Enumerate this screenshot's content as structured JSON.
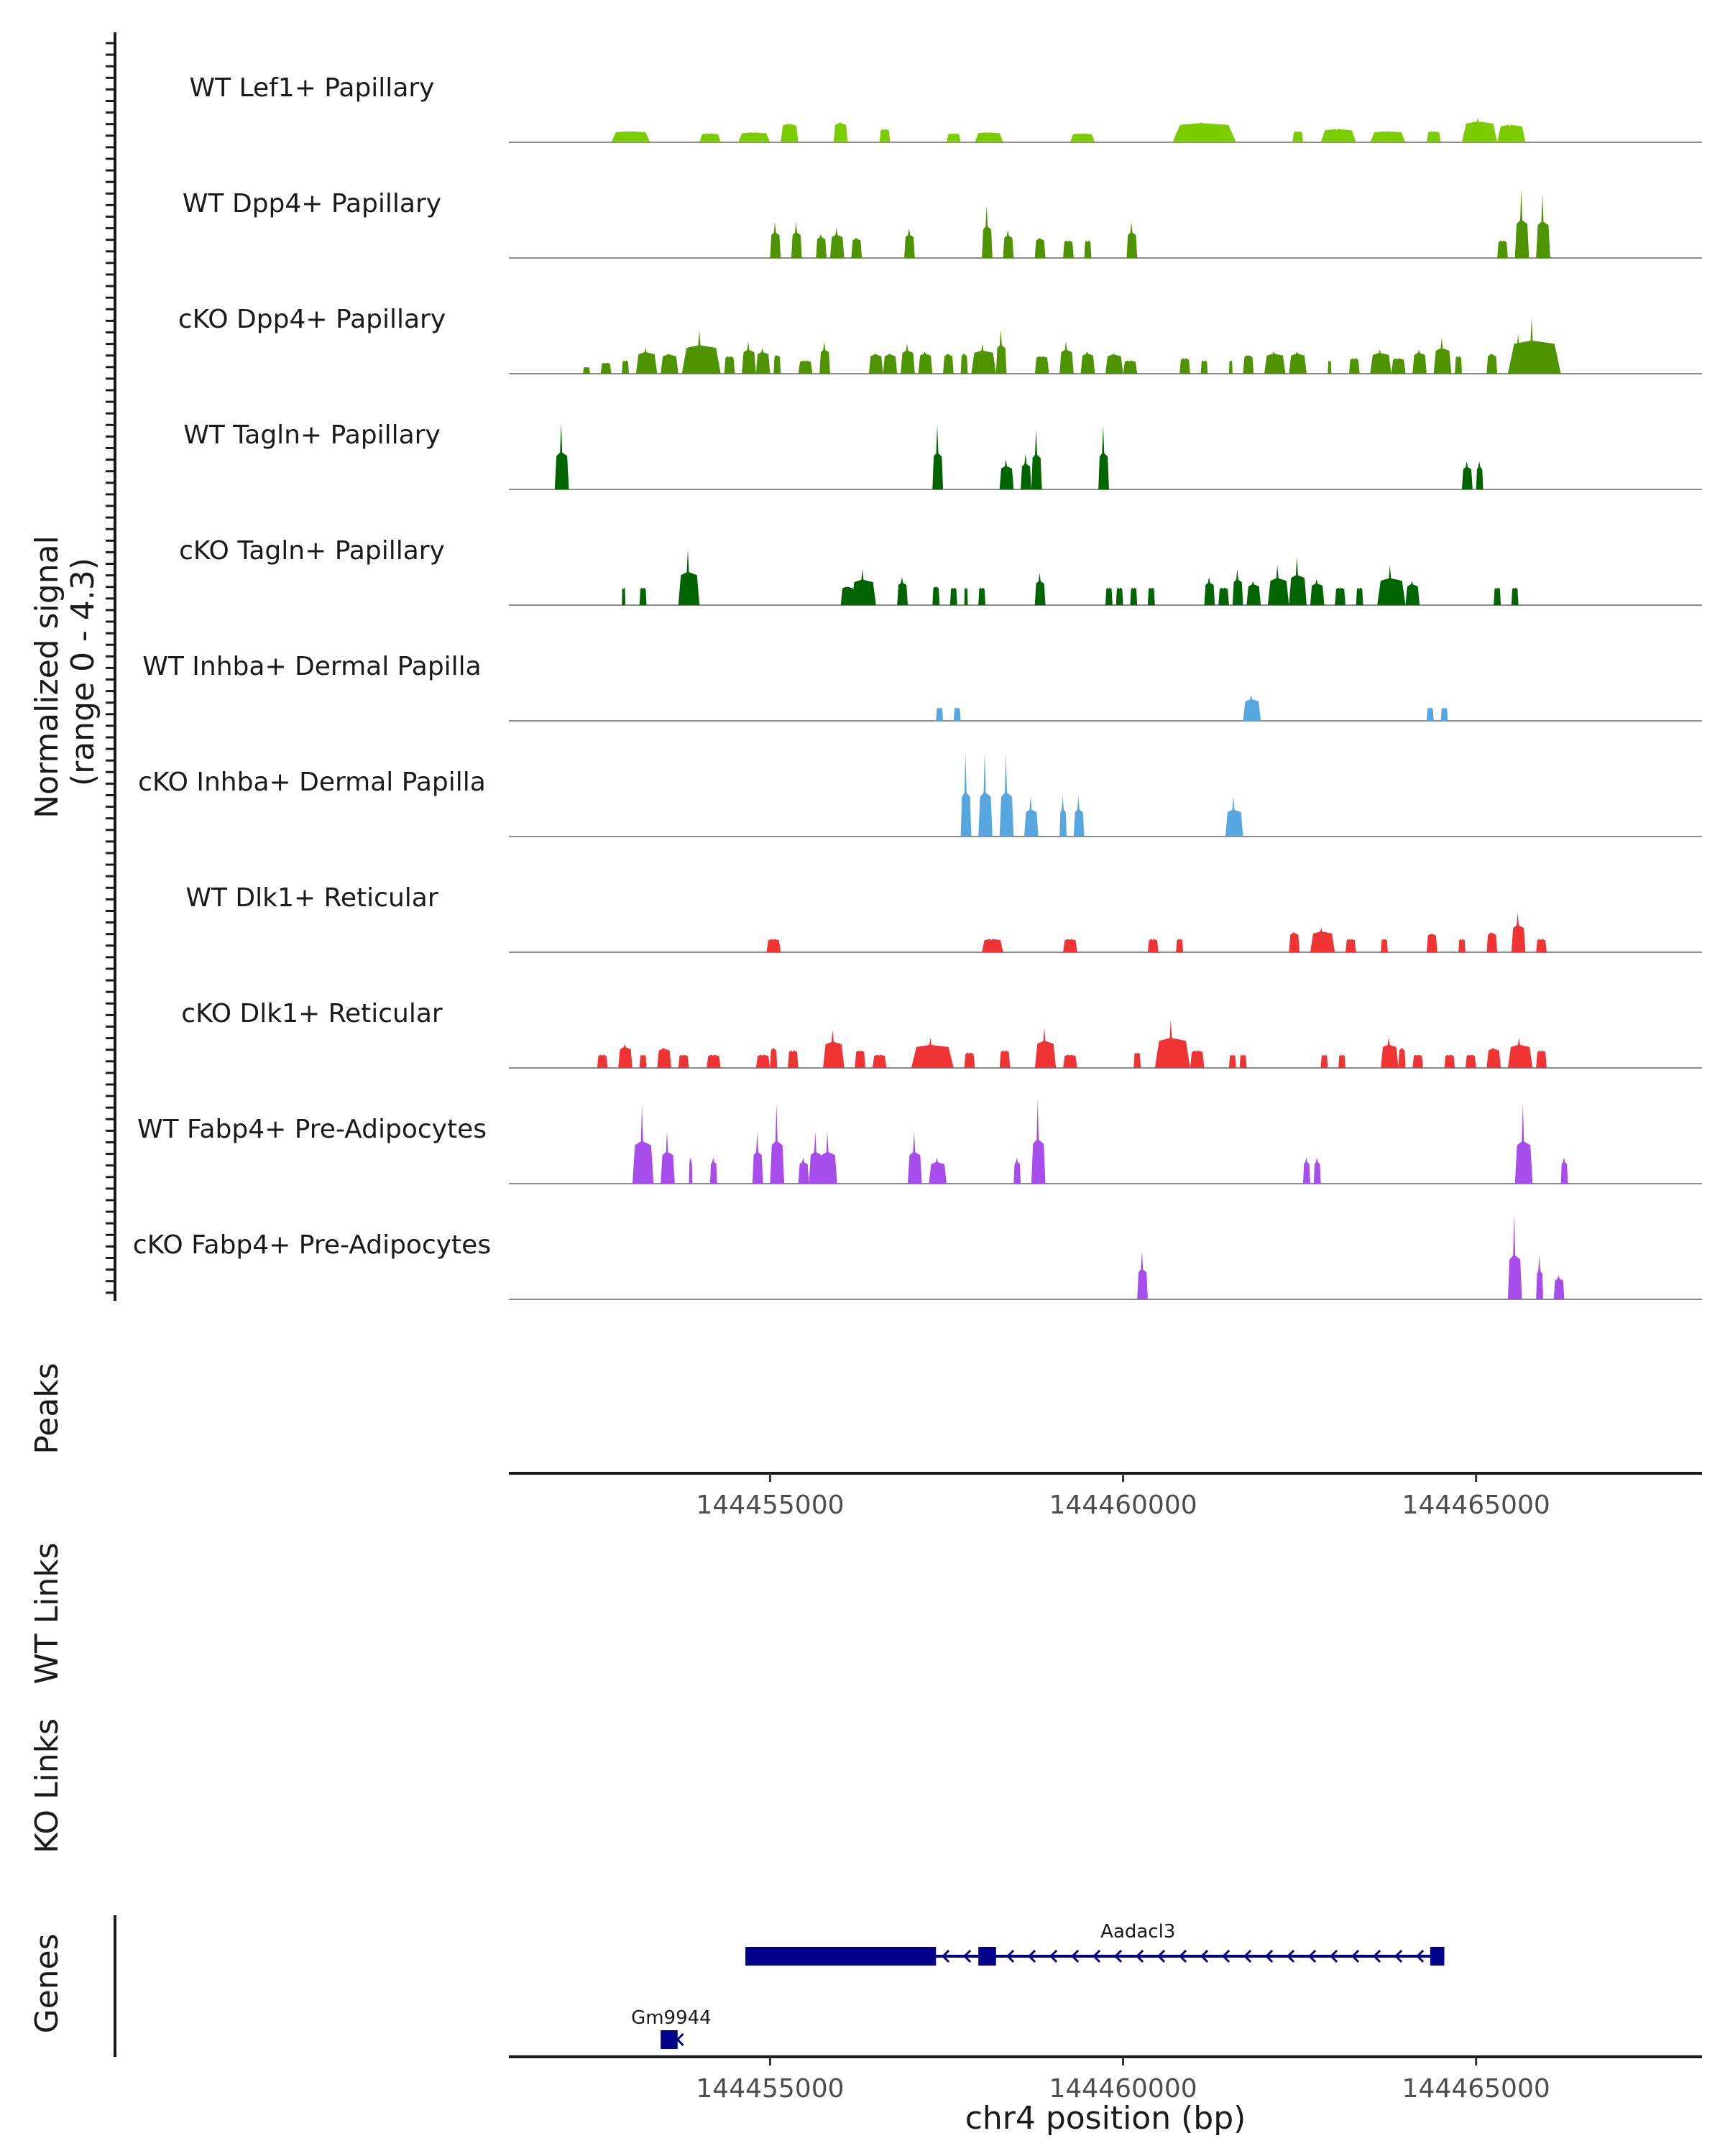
{
  "chart_data": {
    "type": "area",
    "title": "",
    "chromosome": "chr4",
    "region": [
      144451300,
      144468200
    ],
    "ylabel": "Normalized signal",
    "ylabel_range": "(range 0 - 4.3)",
    "ylim": [
      0,
      4.3
    ],
    "xlabel": "chr4 position (bp)",
    "x_ticks": [
      144455000,
      144460000,
      144465000
    ],
    "x_tick_labels": [
      "144455000",
      "144460000",
      "144465000"
    ],
    "tracks": [
      {
        "name": "WT Lef1+ Papillary",
        "color": "#7CCD00",
        "peaks": [
          [
            144452750,
            144453300,
            0.5
          ],
          [
            144454000,
            144454300,
            0.4
          ],
          [
            144454550,
            144455000,
            0.45
          ],
          [
            144455150,
            144455400,
            0.9
          ],
          [
            144455900,
            144456100,
            1.0
          ],
          [
            144456550,
            144456700,
            0.6
          ],
          [
            144457500,
            144457700,
            0.4
          ],
          [
            144457900,
            144458300,
            0.45
          ],
          [
            144459250,
            144459600,
            0.4
          ],
          [
            144460700,
            144461600,
            1.0
          ],
          [
            144462400,
            144462550,
            0.5
          ],
          [
            144462800,
            144463300,
            0.6
          ],
          [
            144463500,
            144464000,
            0.5
          ],
          [
            144464300,
            144464500,
            0.5
          ],
          [
            144464800,
            144465300,
            1.2
          ],
          [
            144465300,
            144465700,
            0.8
          ]
        ]
      },
      {
        "name": "WT Dpp4+ Papillary",
        "color": "#4D9400",
        "peaks": [
          [
            144455000,
            144455150,
            1.8
          ],
          [
            144455300,
            144455450,
            1.8
          ],
          [
            144455650,
            144455800,
            1.2
          ],
          [
            144455850,
            144456050,
            1.5
          ],
          [
            144456150,
            144456300,
            1.0
          ],
          [
            144456900,
            144457050,
            1.5
          ],
          [
            144458000,
            144458150,
            2.6
          ],
          [
            144458300,
            144458450,
            1.4
          ],
          [
            144458750,
            144458900,
            1.0
          ],
          [
            144459150,
            144459300,
            0.8
          ],
          [
            144459450,
            144459550,
            0.8
          ],
          [
            144460050,
            144460200,
            1.8
          ],
          [
            144465300,
            144465450,
            0.8
          ],
          [
            144465550,
            144465750,
            3.4
          ],
          [
            144465850,
            144466050,
            3.2
          ]
        ]
      },
      {
        "name": "cKO Dpp4+ Papillary",
        "color": "#4D9400",
        "peaks": [
          [
            144452350,
            144452450,
            0.3
          ],
          [
            144452600,
            144452750,
            0.5
          ],
          [
            144452900,
            144453000,
            0.6
          ],
          [
            144453100,
            144453400,
            1.3
          ],
          [
            144453450,
            144453700,
            1.0
          ],
          [
            144453750,
            144454300,
            2.2
          ],
          [
            144454350,
            144454500,
            0.8
          ],
          [
            144454600,
            144454800,
            1.6
          ],
          [
            144454800,
            144455000,
            1.3
          ],
          [
            144455050,
            144455150,
            0.9
          ],
          [
            144455400,
            144455600,
            0.6
          ],
          [
            144455700,
            144455850,
            1.6
          ],
          [
            144456400,
            144456600,
            1.0
          ],
          [
            144456600,
            144456800,
            1.0
          ],
          [
            144456850,
            144457050,
            1.5
          ],
          [
            144457100,
            144457300,
            1.1
          ],
          [
            144457450,
            144457600,
            1.0
          ],
          [
            144457700,
            144457800,
            1.0
          ],
          [
            144457850,
            144458200,
            1.5
          ],
          [
            144458200,
            144458350,
            2.2
          ],
          [
            144458750,
            144458950,
            0.8
          ],
          [
            144459100,
            144459300,
            1.6
          ],
          [
            144459400,
            144459600,
            1.1
          ],
          [
            144459750,
            144460000,
            1.0
          ],
          [
            144460000,
            144460200,
            0.6
          ],
          [
            144460800,
            144460950,
            0.7
          ],
          [
            144461100,
            144461200,
            0.6
          ],
          [
            144461500,
            144461550,
            0.6
          ],
          [
            144461700,
            144461850,
            0.9
          ],
          [
            144462000,
            144462300,
            1.1
          ],
          [
            144462350,
            144462600,
            1.1
          ],
          [
            144462900,
            144462950,
            0.6
          ],
          [
            144463200,
            144463350,
            0.7
          ],
          [
            144463500,
            144463800,
            1.2
          ],
          [
            144463800,
            144464000,
            0.7
          ],
          [
            144464100,
            144464300,
            1.2
          ],
          [
            144464400,
            144464650,
            1.8
          ],
          [
            144464700,
            144464800,
            0.8
          ],
          [
            144465150,
            144465300,
            1.0
          ],
          [
            144465450,
            144466200,
            2.8
          ],
          [
            144465550,
            144465650,
            2.0
          ]
        ]
      },
      {
        "name": "WT Tagln+ Papillary",
        "color": "#006400",
        "peaks": [
          [
            144451950,
            144452150,
            3.3
          ],
          [
            144457300,
            144457450,
            3.2
          ],
          [
            144458250,
            144458450,
            1.5
          ],
          [
            144458550,
            144458700,
            1.8
          ],
          [
            144458700,
            144458850,
            3.0
          ],
          [
            144459650,
            144459800,
            3.2
          ],
          [
            144464800,
            144464950,
            1.4
          ],
          [
            144465000,
            144465100,
            1.4
          ]
        ]
      },
      {
        "name": "cKO Tagln+ Papillary",
        "color": "#006400",
        "peaks": [
          [
            144452900,
            144452950,
            0.8
          ],
          [
            144453150,
            144453250,
            0.8
          ],
          [
            144453700,
            144454000,
            2.8
          ],
          [
            144456000,
            144456200,
            0.9
          ],
          [
            144456150,
            144456500,
            1.8
          ],
          [
            144456800,
            144456950,
            1.4
          ],
          [
            144457300,
            144457400,
            0.9
          ],
          [
            144457550,
            144457650,
            0.8
          ],
          [
            144457750,
            144457800,
            0.8
          ],
          [
            144457950,
            144458050,
            0.8
          ],
          [
            144458750,
            144458900,
            1.6
          ],
          [
            144459750,
            144459850,
            0.8
          ],
          [
            144459900,
            144460000,
            0.8
          ],
          [
            144460100,
            144460200,
            0.8
          ],
          [
            144460350,
            144460450,
            0.8
          ],
          [
            144461150,
            144461300,
            1.4
          ],
          [
            144461350,
            144461500,
            0.8
          ],
          [
            144461550,
            144461700,
            1.8
          ],
          [
            144461750,
            144461950,
            1.2
          ],
          [
            144462050,
            144462350,
            2.0
          ],
          [
            144462350,
            144462600,
            2.4
          ],
          [
            144462650,
            144462850,
            1.3
          ],
          [
            144463000,
            144463150,
            0.8
          ],
          [
            144463300,
            144463400,
            0.8
          ],
          [
            144463600,
            144464000,
            2.0
          ],
          [
            144464000,
            144464200,
            1.2
          ],
          [
            144465250,
            144465350,
            0.8
          ],
          [
            144465500,
            144465600,
            0.8
          ]
        ]
      },
      {
        "name": "WT Inhba+ Dermal Papilla",
        "color": "#56A7E0",
        "peaks": [
          [
            144457350,
            144457450,
            0.6
          ],
          [
            144457600,
            144457700,
            0.6
          ],
          [
            144461700,
            144461950,
            1.3
          ],
          [
            144464300,
            144464400,
            0.6
          ],
          [
            144464500,
            144464600,
            0.6
          ]
        ]
      },
      {
        "name": "cKO Inhba+ Dermal Papilla",
        "color": "#56A7E0",
        "peaks": [
          [
            144457700,
            144457850,
            4.2
          ],
          [
            144457950,
            144458150,
            4.2
          ],
          [
            144458250,
            144458450,
            4.2
          ],
          [
            144458600,
            144458800,
            2.0
          ],
          [
            144459100,
            144459200,
            2.0
          ],
          [
            144459300,
            144459450,
            2.0
          ],
          [
            144461450,
            144461700,
            2.0
          ]
        ]
      },
      {
        "name": "WT Dlk1+ Reticular",
        "color": "#F03434",
        "peaks": [
          [
            144454950,
            144455150,
            0.6
          ],
          [
            144458000,
            144458300,
            0.6
          ],
          [
            144459150,
            144459350,
            0.6
          ],
          [
            144460350,
            144460500,
            0.6
          ],
          [
            144460750,
            144460850,
            0.6
          ],
          [
            144462350,
            144462500,
            1.0
          ],
          [
            144462650,
            144463000,
            1.2
          ],
          [
            144463150,
            144463300,
            0.6
          ],
          [
            144463650,
            144463750,
            0.6
          ],
          [
            144464300,
            144464450,
            0.9
          ],
          [
            144464750,
            144464850,
            0.6
          ],
          [
            144465150,
            144465300,
            1.0
          ],
          [
            144465500,
            144465700,
            2.0
          ],
          [
            144465850,
            144466000,
            0.6
          ]
        ]
      },
      {
        "name": "cKO Dlk1+ Reticular",
        "color": "#F03434",
        "peaks": [
          [
            144452550,
            144452700,
            0.6
          ],
          [
            144452850,
            144453050,
            1.2
          ],
          [
            144453150,
            144453250,
            0.6
          ],
          [
            144453400,
            144453600,
            1.0
          ],
          [
            144453700,
            144453850,
            0.6
          ],
          [
            144454100,
            144454300,
            0.6
          ],
          [
            144454800,
            144455000,
            0.6
          ],
          [
            144455000,
            144455100,
            1.0
          ],
          [
            144455250,
            144455400,
            0.8
          ],
          [
            144455750,
            144456050,
            1.9
          ],
          [
            144456200,
            144456350,
            0.8
          ],
          [
            144456450,
            144456650,
            0.6
          ],
          [
            144457000,
            144457600,
            1.5
          ],
          [
            144457750,
            144457900,
            0.7
          ],
          [
            144458250,
            144458400,
            0.8
          ],
          [
            144458750,
            144459050,
            2.0
          ],
          [
            144459150,
            144459350,
            0.6
          ],
          [
            144460150,
            144460250,
            0.7
          ],
          [
            144460450,
            144460950,
            2.4
          ],
          [
            144460950,
            144461150,
            0.8
          ],
          [
            144461500,
            144461600,
            0.6
          ],
          [
            144461650,
            144461750,
            0.6
          ],
          [
            144462800,
            144462900,
            0.6
          ],
          [
            144463050,
            144463150,
            0.6
          ],
          [
            144463650,
            144463900,
            1.5
          ],
          [
            144463900,
            144464000,
            1.0
          ],
          [
            144464100,
            144464250,
            0.6
          ],
          [
            144464550,
            144464700,
            0.6
          ],
          [
            144464850,
            144465000,
            0.6
          ],
          [
            144465150,
            144465350,
            1.0
          ],
          [
            144465450,
            144465800,
            1.5
          ],
          [
            144465850,
            144466000,
            0.8
          ]
        ]
      },
      {
        "name": "WT Fabp4+ Pre-Adipocytes",
        "color": "#A64DEB",
        "peaks": [
          [
            144453050,
            144453350,
            4.0
          ],
          [
            144453450,
            144453650,
            2.6
          ],
          [
            144453850,
            144453900,
            1.3
          ],
          [
            144454150,
            144454250,
            1.3
          ],
          [
            144454750,
            144454900,
            2.6
          ],
          [
            144455000,
            144455200,
            4.0
          ],
          [
            144455400,
            144455550,
            1.3
          ],
          [
            144455550,
            144455750,
            2.6
          ],
          [
            144455700,
            144455950,
            2.6
          ],
          [
            144456950,
            144457150,
            2.6
          ],
          [
            144457250,
            144457500,
            1.3
          ],
          [
            144458450,
            144458550,
            1.3
          ],
          [
            144458700,
            144458900,
            4.2
          ],
          [
            144462550,
            144462650,
            1.3
          ],
          [
            144462700,
            144462800,
            1.3
          ],
          [
            144465550,
            144465800,
            4.0
          ],
          [
            144466200,
            144466300,
            1.3
          ]
        ]
      },
      {
        "name": "cKO Fabp4+ Pre-Adipocytes",
        "color": "#A64DEB",
        "peaks": [
          [
            144460200,
            144460350,
            2.4
          ],
          [
            144465450,
            144465650,
            4.2
          ],
          [
            144465850,
            144465950,
            2.2
          ],
          [
            144466100,
            144466250,
            1.2
          ]
        ]
      }
    ],
    "genes": [
      {
        "name": "Aadacl3",
        "strand": "-",
        "start": 144454650,
        "end": 144464550
      },
      {
        "name": "Gm9944",
        "strand": "-",
        "start": 144453450,
        "end": 144453750
      }
    ],
    "section_labels": {
      "peaks": "Peaks",
      "wt_links": "WT Links",
      "ko_links": "KO Links",
      "genes": "Genes"
    }
  }
}
